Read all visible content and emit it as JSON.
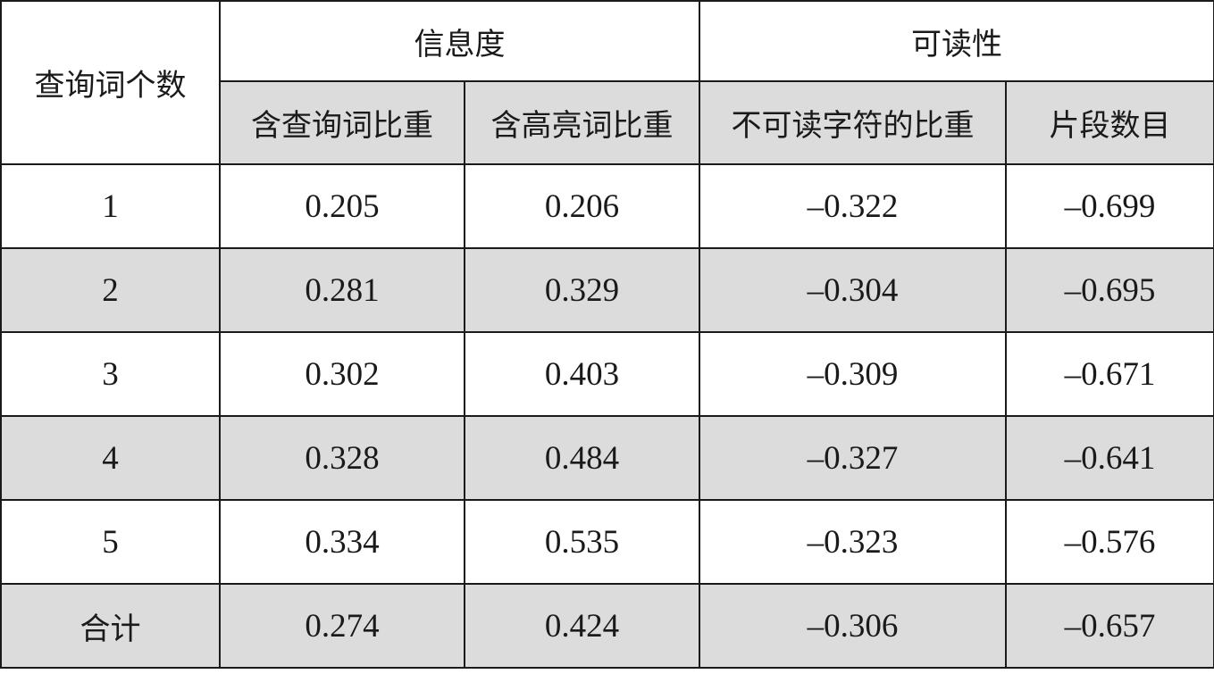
{
  "table": {
    "header": {
      "row_label": "查询词个数",
      "groups": [
        "信息度",
        "可读性"
      ],
      "columns": [
        "含查询词比重",
        "含高亮词比重",
        "不可读字符的比重",
        "片段数目"
      ]
    },
    "rows": [
      [
        "1",
        "0.205",
        "0.206",
        "–0.322",
        "–0.699"
      ],
      [
        "2",
        "0.281",
        "0.329",
        "–0.304",
        "–0.695"
      ],
      [
        "3",
        "0.302",
        "0.403",
        "–0.309",
        "–0.671"
      ],
      [
        "4",
        "0.328",
        "0.484",
        "–0.327",
        "–0.641"
      ],
      [
        "5",
        "0.334",
        "0.535",
        "–0.323",
        "–0.576"
      ],
      [
        "合计",
        "0.274",
        "0.424",
        "–0.306",
        "–0.657"
      ]
    ]
  }
}
